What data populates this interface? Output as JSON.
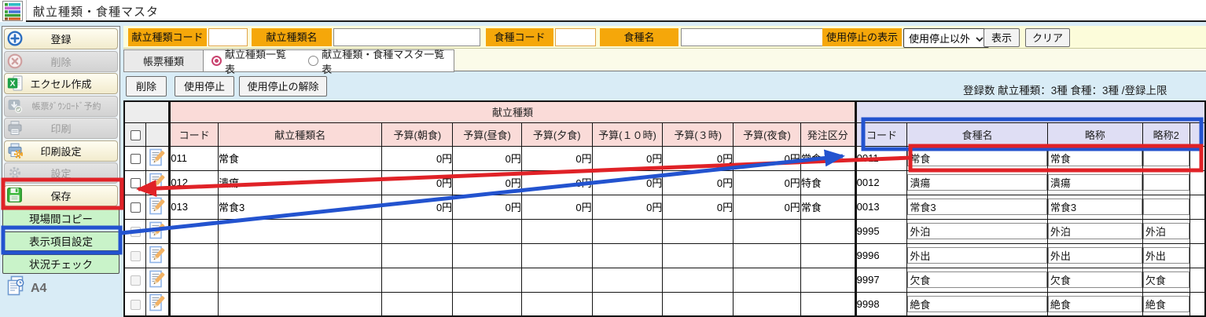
{
  "window": {
    "title": "献立種類・食種マスタ"
  },
  "sidebar": {
    "buttons": [
      {
        "name": "register",
        "label": "登録",
        "icon": "add-circle-icon",
        "enabled": true
      },
      {
        "name": "delete",
        "label": "削除",
        "icon": "remove-circle-icon",
        "enabled": false
      },
      {
        "name": "excel-create",
        "label": "エクセル作成",
        "icon": "excel-icon",
        "enabled": true
      },
      {
        "name": "report-download-reserve",
        "label": "帳票ﾀﾞｳﾝﾛｰﾄﾞ予約",
        "icon": "download-icon",
        "enabled": false
      },
      {
        "name": "print",
        "label": "印刷",
        "icon": "printer-icon",
        "enabled": false
      },
      {
        "name": "print-settings",
        "label": "印刷設定",
        "icon": "printer-gear-icon",
        "enabled": true
      },
      {
        "name": "settings",
        "label": "設定",
        "icon": "gear-icon",
        "enabled": false
      },
      {
        "name": "save",
        "label": "保存",
        "icon": "save-icon",
        "enabled": true
      }
    ],
    "link_buttons": [
      {
        "name": "site-copy",
        "label": "現場間コピー"
      },
      {
        "name": "display-item-settings",
        "label": "表示項目設定"
      },
      {
        "name": "status-check",
        "label": "状況チェック"
      }
    ],
    "paper_size": "A4"
  },
  "filters": {
    "menu_type_code_label": "献立種類コード",
    "menu_type_code_value": "",
    "menu_type_name_label": "献立種類名",
    "menu_type_name_value": "",
    "food_type_code_label": "食種コード",
    "food_type_code_value": "",
    "food_type_name_label": "食種名",
    "food_type_name_value": "",
    "suspended_label": "使用停止の表示",
    "suspended_value": "使用停止以外",
    "show_button": "表示",
    "clear_button": "クリア"
  },
  "report": {
    "label": "帳票種類",
    "options": [
      {
        "label": "献立種類一覧表",
        "selected": true
      },
      {
        "label": "献立種類・食種マスタ一覧表",
        "selected": false
      }
    ]
  },
  "actions": {
    "delete_label": "削除",
    "suspend_label": "使用停止",
    "unsuspend_label": "使用停止の解除"
  },
  "summary_text": "登録数 献立種類：3種 食種：3種 /登録上限",
  "table": {
    "group_left": "献立種類",
    "group_right": "",
    "columns_left": [
      "コード",
      "献立種類名",
      "予算(朝食)",
      "予算(昼食)",
      "予算(夕食)",
      "予算(１０時)",
      "予算(３時)",
      "予算(夜食)",
      "発注区分"
    ],
    "columns_right": [
      "コード",
      "食種名",
      "略称",
      "略称2"
    ],
    "rows": [
      {
        "checkbox_enabled": true,
        "code": "011",
        "name": "常食",
        "budgets": [
          "0円",
          "0円",
          "0円",
          "0円",
          "0円",
          "0円"
        ],
        "order_class": "常食",
        "food_code": "0011",
        "food_name": "常食",
        "abbr": "常食",
        "abbr2": ""
      },
      {
        "checkbox_enabled": true,
        "code": "012",
        "name": "潰瘍",
        "budgets": [
          "0円",
          "0円",
          "0円",
          "0円",
          "0円",
          "0円"
        ],
        "order_class": "特食",
        "food_code": "0012",
        "food_name": "潰瘍",
        "abbr": "潰瘍",
        "abbr2": ""
      },
      {
        "checkbox_enabled": true,
        "code": "013",
        "name": "常食3",
        "budgets": [
          "0円",
          "0円",
          "0円",
          "0円",
          "0円",
          "0円"
        ],
        "order_class": "常食",
        "food_code": "0013",
        "food_name": "常食3",
        "abbr": "常食3",
        "abbr2": ""
      },
      {
        "checkbox_enabled": false,
        "code": "",
        "name": "",
        "budgets": [
          "",
          "",
          "",
          "",
          "",
          ""
        ],
        "order_class": "",
        "food_code": "9995",
        "food_name": "外泊",
        "abbr": "外泊",
        "abbr2": "外泊"
      },
      {
        "checkbox_enabled": false,
        "code": "",
        "name": "",
        "budgets": [
          "",
          "",
          "",
          "",
          "",
          ""
        ],
        "order_class": "",
        "food_code": "9996",
        "food_name": "外出",
        "abbr": "外出",
        "abbr2": "外出"
      },
      {
        "checkbox_enabled": false,
        "code": "",
        "name": "",
        "budgets": [
          "",
          "",
          "",
          "",
          "",
          ""
        ],
        "order_class": "",
        "food_code": "9997",
        "food_name": "欠食",
        "abbr": "欠食",
        "abbr2": "欠食"
      },
      {
        "checkbox_enabled": false,
        "code": "",
        "name": "",
        "budgets": [
          "",
          "",
          "",
          "",
          "",
          ""
        ],
        "order_class": "",
        "food_code": "9998",
        "food_name": "絶食",
        "abbr": "絶食",
        "abbr2": "絶食"
      }
    ]
  },
  "colors": {
    "annotation_red": "#e02227",
    "annotation_blue": "#2353cf",
    "header_pink": "#fadbd8",
    "header_lavender": "#dfdef4",
    "label_orange": "#f5a70a",
    "filter_bg": "#fcfcda",
    "content_bg": "#d9ecf6"
  }
}
